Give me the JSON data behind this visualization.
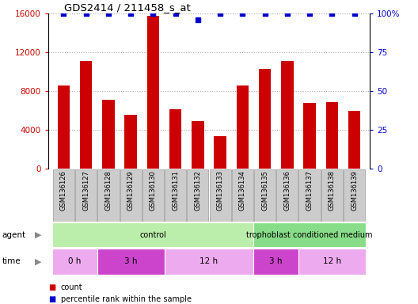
{
  "title": "GDS2414 / 211458_s_at",
  "samples": [
    "GSM136126",
    "GSM136127",
    "GSM136128",
    "GSM136129",
    "GSM136130",
    "GSM136131",
    "GSM136132",
    "GSM136133",
    "GSM136134",
    "GSM136135",
    "GSM136136",
    "GSM136137",
    "GSM136138",
    "GSM136139"
  ],
  "counts": [
    8600,
    11100,
    7100,
    5600,
    15800,
    6100,
    4900,
    3400,
    8600,
    10300,
    11100,
    6800,
    6900,
    6000
  ],
  "percentile_ranks": [
    100,
    100,
    100,
    100,
    100,
    100,
    96,
    100,
    100,
    100,
    100,
    100,
    100,
    100
  ],
  "bar_color": "#cc0000",
  "dot_color": "#0000cc",
  "ylim_left": [
    0,
    16000
  ],
  "ylim_right": [
    0,
    100
  ],
  "yticks_left": [
    0,
    4000,
    8000,
    12000,
    16000
  ],
  "yticks_right": [
    0,
    25,
    50,
    75,
    100
  ],
  "ytick_labels_left": [
    "0",
    "4000",
    "8000",
    "12000",
    "16000"
  ],
  "ytick_labels_right": [
    "0",
    "25",
    "50",
    "75",
    "100%"
  ],
  "agent_groups": [
    {
      "label": "control",
      "start": 0,
      "end": 9,
      "color": "#aaeea a"
    },
    {
      "label": "trophoblast conditioned medium",
      "start": 9,
      "end": 14,
      "color": "#88dd88"
    }
  ],
  "time_groups": [
    {
      "label": "0 h",
      "start": 0,
      "end": 2,
      "color": "#ee99ee"
    },
    {
      "label": "3 h",
      "start": 2,
      "end": 5,
      "color": "#cc44cc"
    },
    {
      "label": "12 h",
      "start": 5,
      "end": 9,
      "color": "#ee99ee"
    },
    {
      "label": "3 h",
      "start": 9,
      "end": 11,
      "color": "#cc44cc"
    },
    {
      "label": "12 h",
      "start": 11,
      "end": 14,
      "color": "#ee99ee"
    }
  ],
  "agent_color_light": "#bbeeaa",
  "agent_color_dark": "#88dd88",
  "time_color_light": "#eeaaee",
  "time_color_dark": "#cc44cc",
  "tick_bg_color": "#cccccc",
  "tick_border_color": "#999999",
  "dotted_line_color": "#aaaaaa",
  "legend_square_size": 8,
  "bar_width": 0.55
}
